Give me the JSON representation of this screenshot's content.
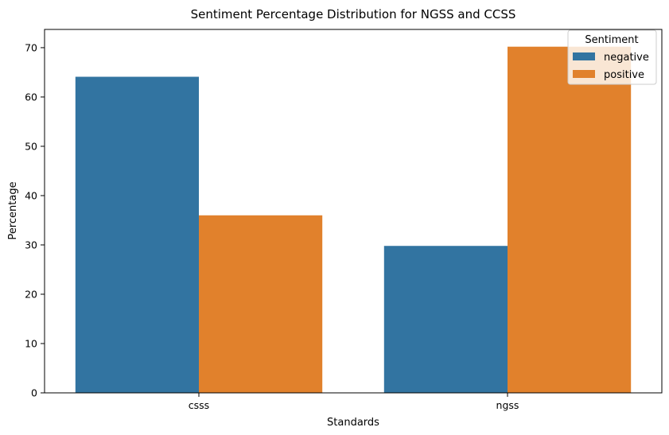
{
  "chart_data": {
    "type": "bar",
    "title": "Sentiment Percentage Distribution for NGSS and CCSS",
    "xlabel": "Standards",
    "ylabel": "Percentage",
    "categories": [
      "csss",
      "ngss"
    ],
    "series": [
      {
        "name": "negative",
        "values": [
          64.1,
          29.8
        ],
        "color": "#3274a1"
      },
      {
        "name": "positive",
        "values": [
          36.0,
          70.2
        ],
        "color": "#e1812c"
      }
    ],
    "ylim": [
      0,
      73.7
    ],
    "yticks": [
      0,
      10,
      20,
      30,
      40,
      50,
      60,
      70
    ],
    "grid": false,
    "legend": {
      "title": "Sentiment",
      "position": "top-right"
    }
  }
}
